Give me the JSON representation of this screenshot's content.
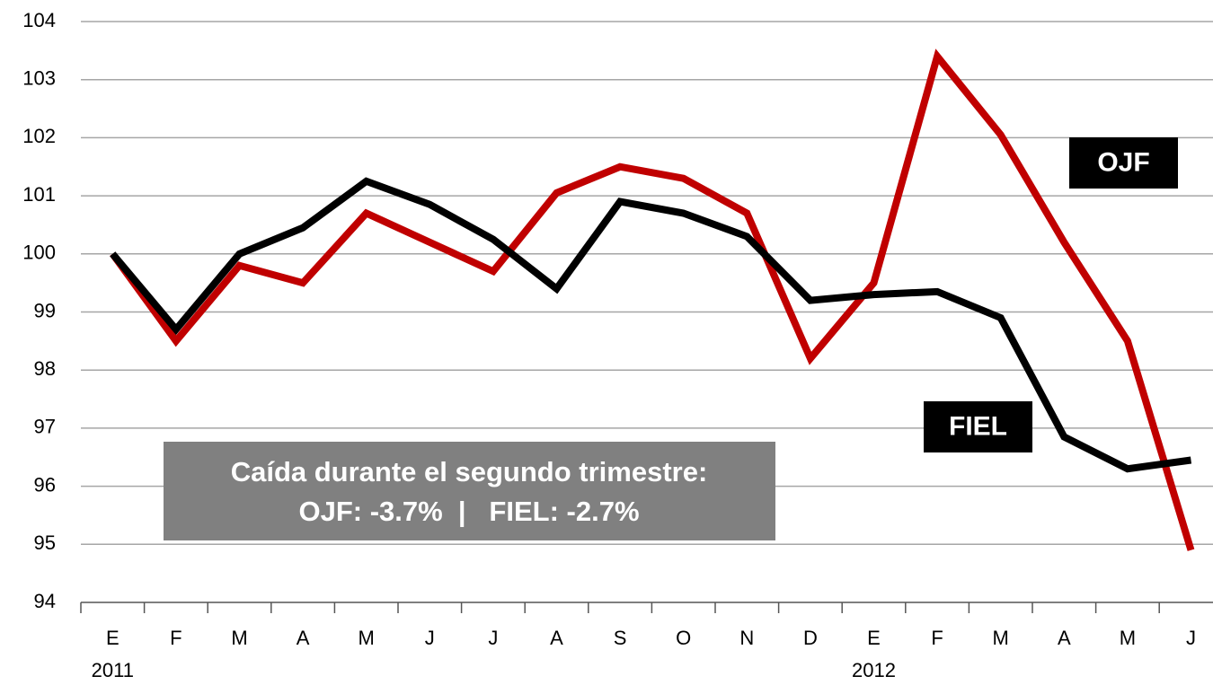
{
  "chart_data": {
    "type": "line",
    "categories": [
      "E",
      "F",
      "M",
      "A",
      "M",
      "J",
      "J",
      "A",
      "S",
      "O",
      "N",
      "D",
      "E",
      "F",
      "M",
      "A",
      "M",
      "J"
    ],
    "years": [
      "2011",
      null,
      null,
      null,
      null,
      null,
      null,
      null,
      null,
      null,
      null,
      null,
      "2012",
      null,
      null,
      null,
      null,
      null
    ],
    "series": [
      {
        "name": "OJF",
        "color": "#c00000",
        "values": [
          100,
          98.5,
          99.8,
          99.5,
          100.7,
          100.2,
          99.7,
          101.05,
          101.5,
          101.3,
          100.7,
          98.2,
          99.5,
          103.4,
          102.05,
          100.2,
          98.5,
          94.9
        ]
      },
      {
        "name": "FIEL",
        "color": "#000000",
        "values": [
          100,
          98.7,
          100,
          100.45,
          101.25,
          100.85,
          100.25,
          99.4,
          100.9,
          100.7,
          100.3,
          99.2,
          99.3,
          99.35,
          98.9,
          96.85,
          96.3,
          96.45
        ]
      }
    ],
    "ylim": [
      94,
      104
    ],
    "yticks": [
      94,
      95,
      96,
      97,
      98,
      99,
      100,
      101,
      102,
      103,
      104
    ],
    "grid": true,
    "annotation": [
      "Caída durante el segundo trimestre:",
      "OJF: -3.7%  |   FIEL: -2.7%"
    ]
  }
}
